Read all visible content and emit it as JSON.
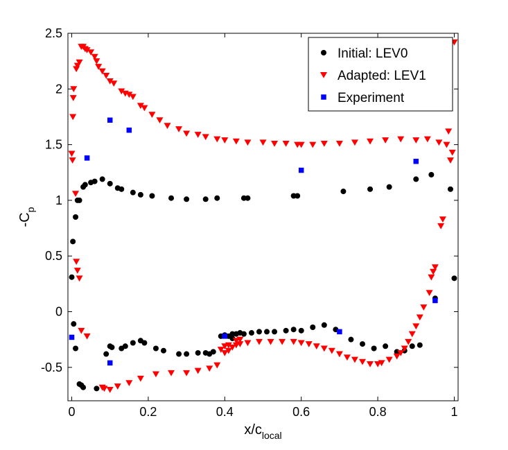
{
  "chart_data": {
    "type": "scatter",
    "title": "",
    "xlabel_main": "x/c",
    "xlabel_sub": "local",
    "ylabel_main": "-C",
    "ylabel_sub": "p",
    "xlim": [
      -0.01,
      1.01
    ],
    "ylim": [
      -0.8,
      2.5
    ],
    "x_ticks": [
      0,
      0.2,
      0.4,
      0.6,
      0.8,
      1
    ],
    "x_tick_labels": [
      "0",
      "0.2",
      "0.4",
      "0.6",
      "0.8",
      "1"
    ],
    "y_ticks": [
      -0.5,
      0,
      0.5,
      1,
      1.5,
      2,
      2.5
    ],
    "y_tick_labels": [
      "-0.5",
      "0",
      "0.5",
      "1",
      "1.5",
      "2",
      "2.5"
    ],
    "legend_position": "top-right",
    "series": [
      {
        "name": "Initial: LEV0",
        "marker": "circle",
        "color": "#000000",
        "points": [
          [
            0.0,
            0.31
          ],
          [
            0.003,
            0.63
          ],
          [
            0.01,
            0.85
          ],
          [
            0.015,
            1.0
          ],
          [
            0.02,
            1.0
          ],
          [
            0.03,
            1.12
          ],
          [
            0.035,
            1.14
          ],
          [
            0.05,
            1.16
          ],
          [
            0.06,
            1.17
          ],
          [
            0.08,
            1.19
          ],
          [
            0.1,
            1.15
          ],
          [
            0.12,
            1.11
          ],
          [
            0.13,
            1.1
          ],
          [
            0.16,
            1.07
          ],
          [
            0.18,
            1.05
          ],
          [
            0.21,
            1.04
          ],
          [
            0.26,
            1.02
          ],
          [
            0.3,
            1.01
          ],
          [
            0.35,
            1.01
          ],
          [
            0.38,
            1.02
          ],
          [
            0.45,
            1.02
          ],
          [
            0.46,
            1.02
          ],
          [
            0.58,
            1.04
          ],
          [
            0.59,
            1.04
          ],
          [
            0.71,
            1.08
          ],
          [
            0.78,
            1.1
          ],
          [
            0.83,
            1.12
          ],
          [
            0.9,
            1.19
          ],
          [
            0.94,
            1.23
          ],
          [
            0.99,
            1.1
          ],
          [
            0.005,
            -0.11
          ],
          [
            0.01,
            -0.33
          ],
          [
            0.02,
            -0.65
          ],
          [
            0.025,
            -0.66
          ],
          [
            0.03,
            -0.68
          ],
          [
            0.065,
            -0.69
          ],
          [
            0.09,
            -0.38
          ],
          [
            0.1,
            -0.31
          ],
          [
            0.105,
            -0.32
          ],
          [
            0.13,
            -0.33
          ],
          [
            0.14,
            -0.31
          ],
          [
            0.16,
            -0.28
          ],
          [
            0.18,
            -0.26
          ],
          [
            0.19,
            -0.28
          ],
          [
            0.22,
            -0.33
          ],
          [
            0.24,
            -0.35
          ],
          [
            0.28,
            -0.38
          ],
          [
            0.3,
            -0.38
          ],
          [
            0.33,
            -0.37
          ],
          [
            0.35,
            -0.37
          ],
          [
            0.36,
            -0.38
          ],
          [
            0.37,
            -0.36
          ],
          [
            0.39,
            -0.22
          ],
          [
            0.4,
            -0.21
          ],
          [
            0.41,
            -0.22
          ],
          [
            0.42,
            -0.2
          ],
          [
            0.43,
            -0.2
          ],
          [
            0.44,
            -0.19
          ],
          [
            0.45,
            -0.2
          ],
          [
            0.47,
            -0.19
          ],
          [
            0.49,
            -0.18
          ],
          [
            0.51,
            -0.18
          ],
          [
            0.53,
            -0.18
          ],
          [
            0.56,
            -0.17
          ],
          [
            0.58,
            -0.16
          ],
          [
            0.6,
            -0.17
          ],
          [
            0.63,
            -0.14
          ],
          [
            0.66,
            -0.12
          ],
          [
            0.69,
            -0.16
          ],
          [
            0.73,
            -0.25
          ],
          [
            0.76,
            -0.29
          ],
          [
            0.79,
            -0.33
          ],
          [
            0.82,
            -0.31
          ],
          [
            0.85,
            -0.36
          ],
          [
            0.87,
            -0.35
          ],
          [
            0.89,
            -0.31
          ],
          [
            0.91,
            -0.3
          ],
          [
            0.95,
            0.12
          ],
          [
            1.0,
            0.3
          ],
          [
            0.42,
            -0.24
          ]
        ]
      },
      {
        "name": "Adapted: LEV1",
        "marker": "triangle-down",
        "color": "#ff0000",
        "points": [
          [
            0.0,
            1.42
          ],
          [
            0.002,
            1.36
          ],
          [
            0.003,
            1.75
          ],
          [
            0.004,
            1.92
          ],
          [
            0.005,
            2.0
          ],
          [
            0.01,
            1.06
          ],
          [
            0.012,
            2.18
          ],
          [
            0.015,
            2.21
          ],
          [
            0.02,
            2.24
          ],
          [
            0.025,
            2.38
          ],
          [
            0.03,
            2.38
          ],
          [
            0.035,
            2.36
          ],
          [
            0.04,
            2.35
          ],
          [
            0.05,
            2.33
          ],
          [
            0.06,
            2.29
          ],
          [
            0.065,
            2.25
          ],
          [
            0.07,
            2.2
          ],
          [
            0.08,
            2.16
          ],
          [
            0.09,
            2.12
          ],
          [
            0.1,
            2.07
          ],
          [
            0.11,
            2.05
          ],
          [
            0.13,
            1.98
          ],
          [
            0.14,
            1.96
          ],
          [
            0.15,
            1.95
          ],
          [
            0.16,
            1.93
          ],
          [
            0.18,
            1.85
          ],
          [
            0.19,
            1.83
          ],
          [
            0.21,
            1.77
          ],
          [
            0.23,
            1.72
          ],
          [
            0.25,
            1.67
          ],
          [
            0.28,
            1.64
          ],
          [
            0.3,
            1.6
          ],
          [
            0.33,
            1.59
          ],
          [
            0.35,
            1.57
          ],
          [
            0.38,
            1.55
          ],
          [
            0.4,
            1.54
          ],
          [
            0.43,
            1.53
          ],
          [
            0.46,
            1.52
          ],
          [
            0.5,
            1.52
          ],
          [
            0.53,
            1.51
          ],
          [
            0.56,
            1.51
          ],
          [
            0.59,
            1.5
          ],
          [
            0.6,
            1.5
          ],
          [
            0.63,
            1.5
          ],
          [
            0.66,
            1.51
          ],
          [
            0.7,
            1.51
          ],
          [
            0.74,
            1.52
          ],
          [
            0.78,
            1.53
          ],
          [
            0.82,
            1.54
          ],
          [
            0.86,
            1.55
          ],
          [
            0.9,
            1.54
          ],
          [
            0.93,
            1.55
          ],
          [
            0.96,
            1.52
          ],
          [
            0.98,
            1.5
          ],
          [
            0.985,
            1.62
          ],
          [
            0.99,
            1.36
          ],
          [
            0.995,
            1.43
          ],
          [
            1.0,
            2.42
          ],
          [
            0.97,
            0.83
          ],
          [
            0.965,
            0.77
          ],
          [
            0.95,
            0.4
          ],
          [
            0.945,
            0.36
          ],
          [
            0.94,
            0.31
          ],
          [
            0.935,
            0.17
          ],
          [
            0.92,
            0.04
          ],
          [
            0.91,
            -0.05
          ],
          [
            0.9,
            -0.13
          ],
          [
            0.89,
            -0.2
          ],
          [
            0.88,
            -0.27
          ],
          [
            0.87,
            -0.33
          ],
          [
            0.86,
            -0.37
          ],
          [
            0.85,
            -0.4
          ],
          [
            0.83,
            -0.43
          ],
          [
            0.81,
            -0.46
          ],
          [
            0.8,
            -0.47
          ],
          [
            0.78,
            -0.47
          ],
          [
            0.76,
            -0.45
          ],
          [
            0.74,
            -0.43
          ],
          [
            0.72,
            -0.41
          ],
          [
            0.7,
            -0.38
          ],
          [
            0.68,
            -0.35
          ],
          [
            0.66,
            -0.33
          ],
          [
            0.64,
            -0.31
          ],
          [
            0.62,
            -0.29
          ],
          [
            0.6,
            -0.28
          ],
          [
            0.58,
            -0.27
          ],
          [
            0.55,
            -0.27
          ],
          [
            0.52,
            -0.27
          ],
          [
            0.49,
            -0.27
          ],
          [
            0.46,
            -0.28
          ],
          [
            0.44,
            -0.29
          ],
          [
            0.43,
            -0.3
          ],
          [
            0.42,
            -0.32
          ],
          [
            0.41,
            -0.35
          ],
          [
            0.4,
            -0.37
          ],
          [
            0.39,
            -0.34
          ],
          [
            0.38,
            -0.48
          ],
          [
            0.36,
            -0.51
          ],
          [
            0.33,
            -0.53
          ],
          [
            0.3,
            -0.55
          ],
          [
            0.26,
            -0.55
          ],
          [
            0.22,
            -0.56
          ],
          [
            0.18,
            -0.6
          ],
          [
            0.15,
            -0.64
          ],
          [
            0.12,
            -0.67
          ],
          [
            0.1,
            -0.7
          ],
          [
            0.085,
            -0.69
          ],
          [
            0.08,
            -0.68
          ],
          [
            0.04,
            -0.22
          ],
          [
            0.025,
            -0.17
          ],
          [
            0.02,
            0.3
          ],
          [
            0.015,
            0.37
          ],
          [
            0.012,
            0.45
          ],
          [
            0.44,
            -0.25
          ],
          [
            0.43,
            -0.26
          ],
          [
            0.41,
            -0.3
          ],
          [
            0.4,
            -0.31
          ]
        ]
      },
      {
        "name": "Experiment",
        "marker": "square",
        "color": "#0000ff",
        "points": [
          [
            0.0,
            -0.23
          ],
          [
            0.04,
            1.38
          ],
          [
            0.1,
            1.72
          ],
          [
            0.15,
            1.63
          ],
          [
            0.1,
            -0.46
          ],
          [
            0.4,
            -0.22
          ],
          [
            0.6,
            1.27
          ],
          [
            0.7,
            -0.18
          ],
          [
            0.9,
            1.35
          ],
          [
            0.95,
            0.1
          ]
        ]
      }
    ]
  }
}
